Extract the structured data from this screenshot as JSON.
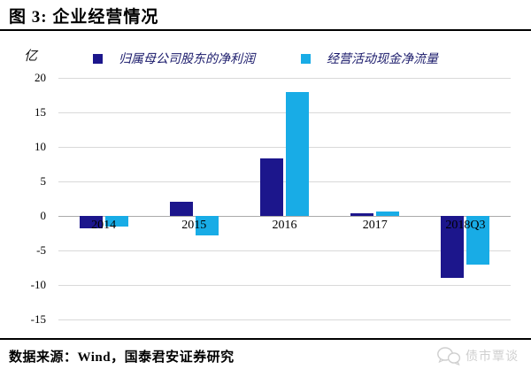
{
  "header": {
    "title": "图 3: 企业经营情况"
  },
  "chart_data": {
    "type": "bar",
    "title": "企业经营情况",
    "unit_label": "亿",
    "categories": [
      "2014",
      "2015",
      "2016",
      "2017",
      "2018Q3"
    ],
    "series": [
      {
        "name": "归属母公司股东的净利润",
        "color": "#1c168c",
        "values": [
          -1.8,
          2.1,
          8.3,
          0.4,
          -9.0
        ]
      },
      {
        "name": "经营活动现金净流量",
        "color": "#18ace6",
        "values": [
          -1.5,
          -2.8,
          18.0,
          0.7,
          -7.0
        ]
      }
    ],
    "ylim": [
      -15,
      20
    ],
    "ytick_step": 5,
    "grid": true,
    "grid_color": "#d9d9d9",
    "legend_position": "top"
  },
  "footer": {
    "source": "数据来源：Wind，国泰君安证券研究"
  },
  "watermark": {
    "label": "债市覃谈",
    "icon": "chat-bubbles-icon",
    "color": "#cfcfcf"
  }
}
